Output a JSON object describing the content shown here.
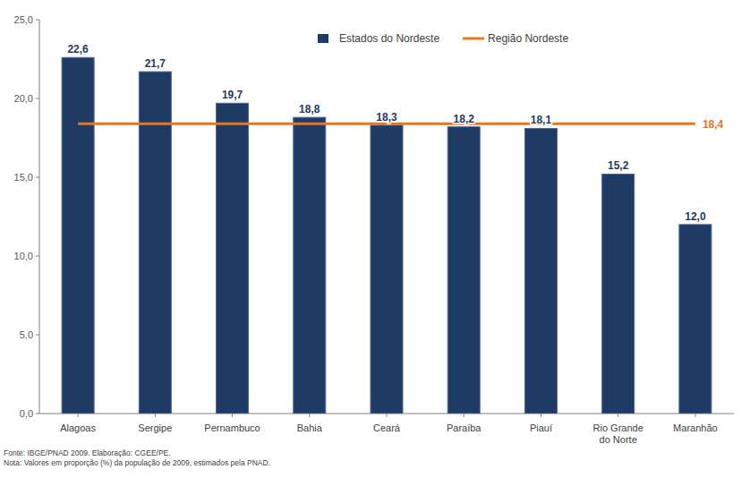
{
  "chart_data": {
    "type": "bar",
    "categories": [
      "Alagoas",
      "Sergipe",
      "Pernambuco",
      "Bahia",
      "Ceará",
      "Paraíba",
      "Piauí",
      "Rio Grande do Norte",
      "Maranhão"
    ],
    "series": [
      {
        "name": "Estados do Nordeste",
        "type": "bar",
        "color": "#1f3a63",
        "values": [
          22.6,
          21.7,
          19.7,
          18.8,
          18.3,
          18.2,
          18.1,
          15.2,
          12.0
        ],
        "value_labels": [
          "22,6",
          "21,7",
          "19,7",
          "18,8",
          "18,3",
          "18,2",
          "18,1",
          "15,2",
          "12,0"
        ]
      },
      {
        "name": "Região Nordeste",
        "type": "line",
        "color": "#e8761e",
        "values": [
          18.4,
          18.4,
          18.4,
          18.4,
          18.4,
          18.4,
          18.4,
          18.4,
          18.4
        ],
        "value_labels": [
          null,
          null,
          null,
          null,
          null,
          null,
          null,
          null,
          "18,4"
        ]
      }
    ],
    "ylim": [
      0,
      25
    ],
    "yticks": [
      {
        "value": 0,
        "label": "0,0"
      },
      {
        "value": 5,
        "label": "5,0"
      },
      {
        "value": 10,
        "label": "10,0"
      },
      {
        "value": 15,
        "label": "15,0"
      },
      {
        "value": 20,
        "label": "20,0"
      },
      {
        "value": 25,
        "label": "25,0"
      }
    ],
    "grid": false,
    "legend": "top",
    "data_labels": true,
    "annotations": [
      "Fonte: IBGE/PNAD 2009. Elaboração: CGEE/PE.",
      "Nota: Valores em proporção (%) da população de 2009, estimados pela PNAD."
    ]
  }
}
